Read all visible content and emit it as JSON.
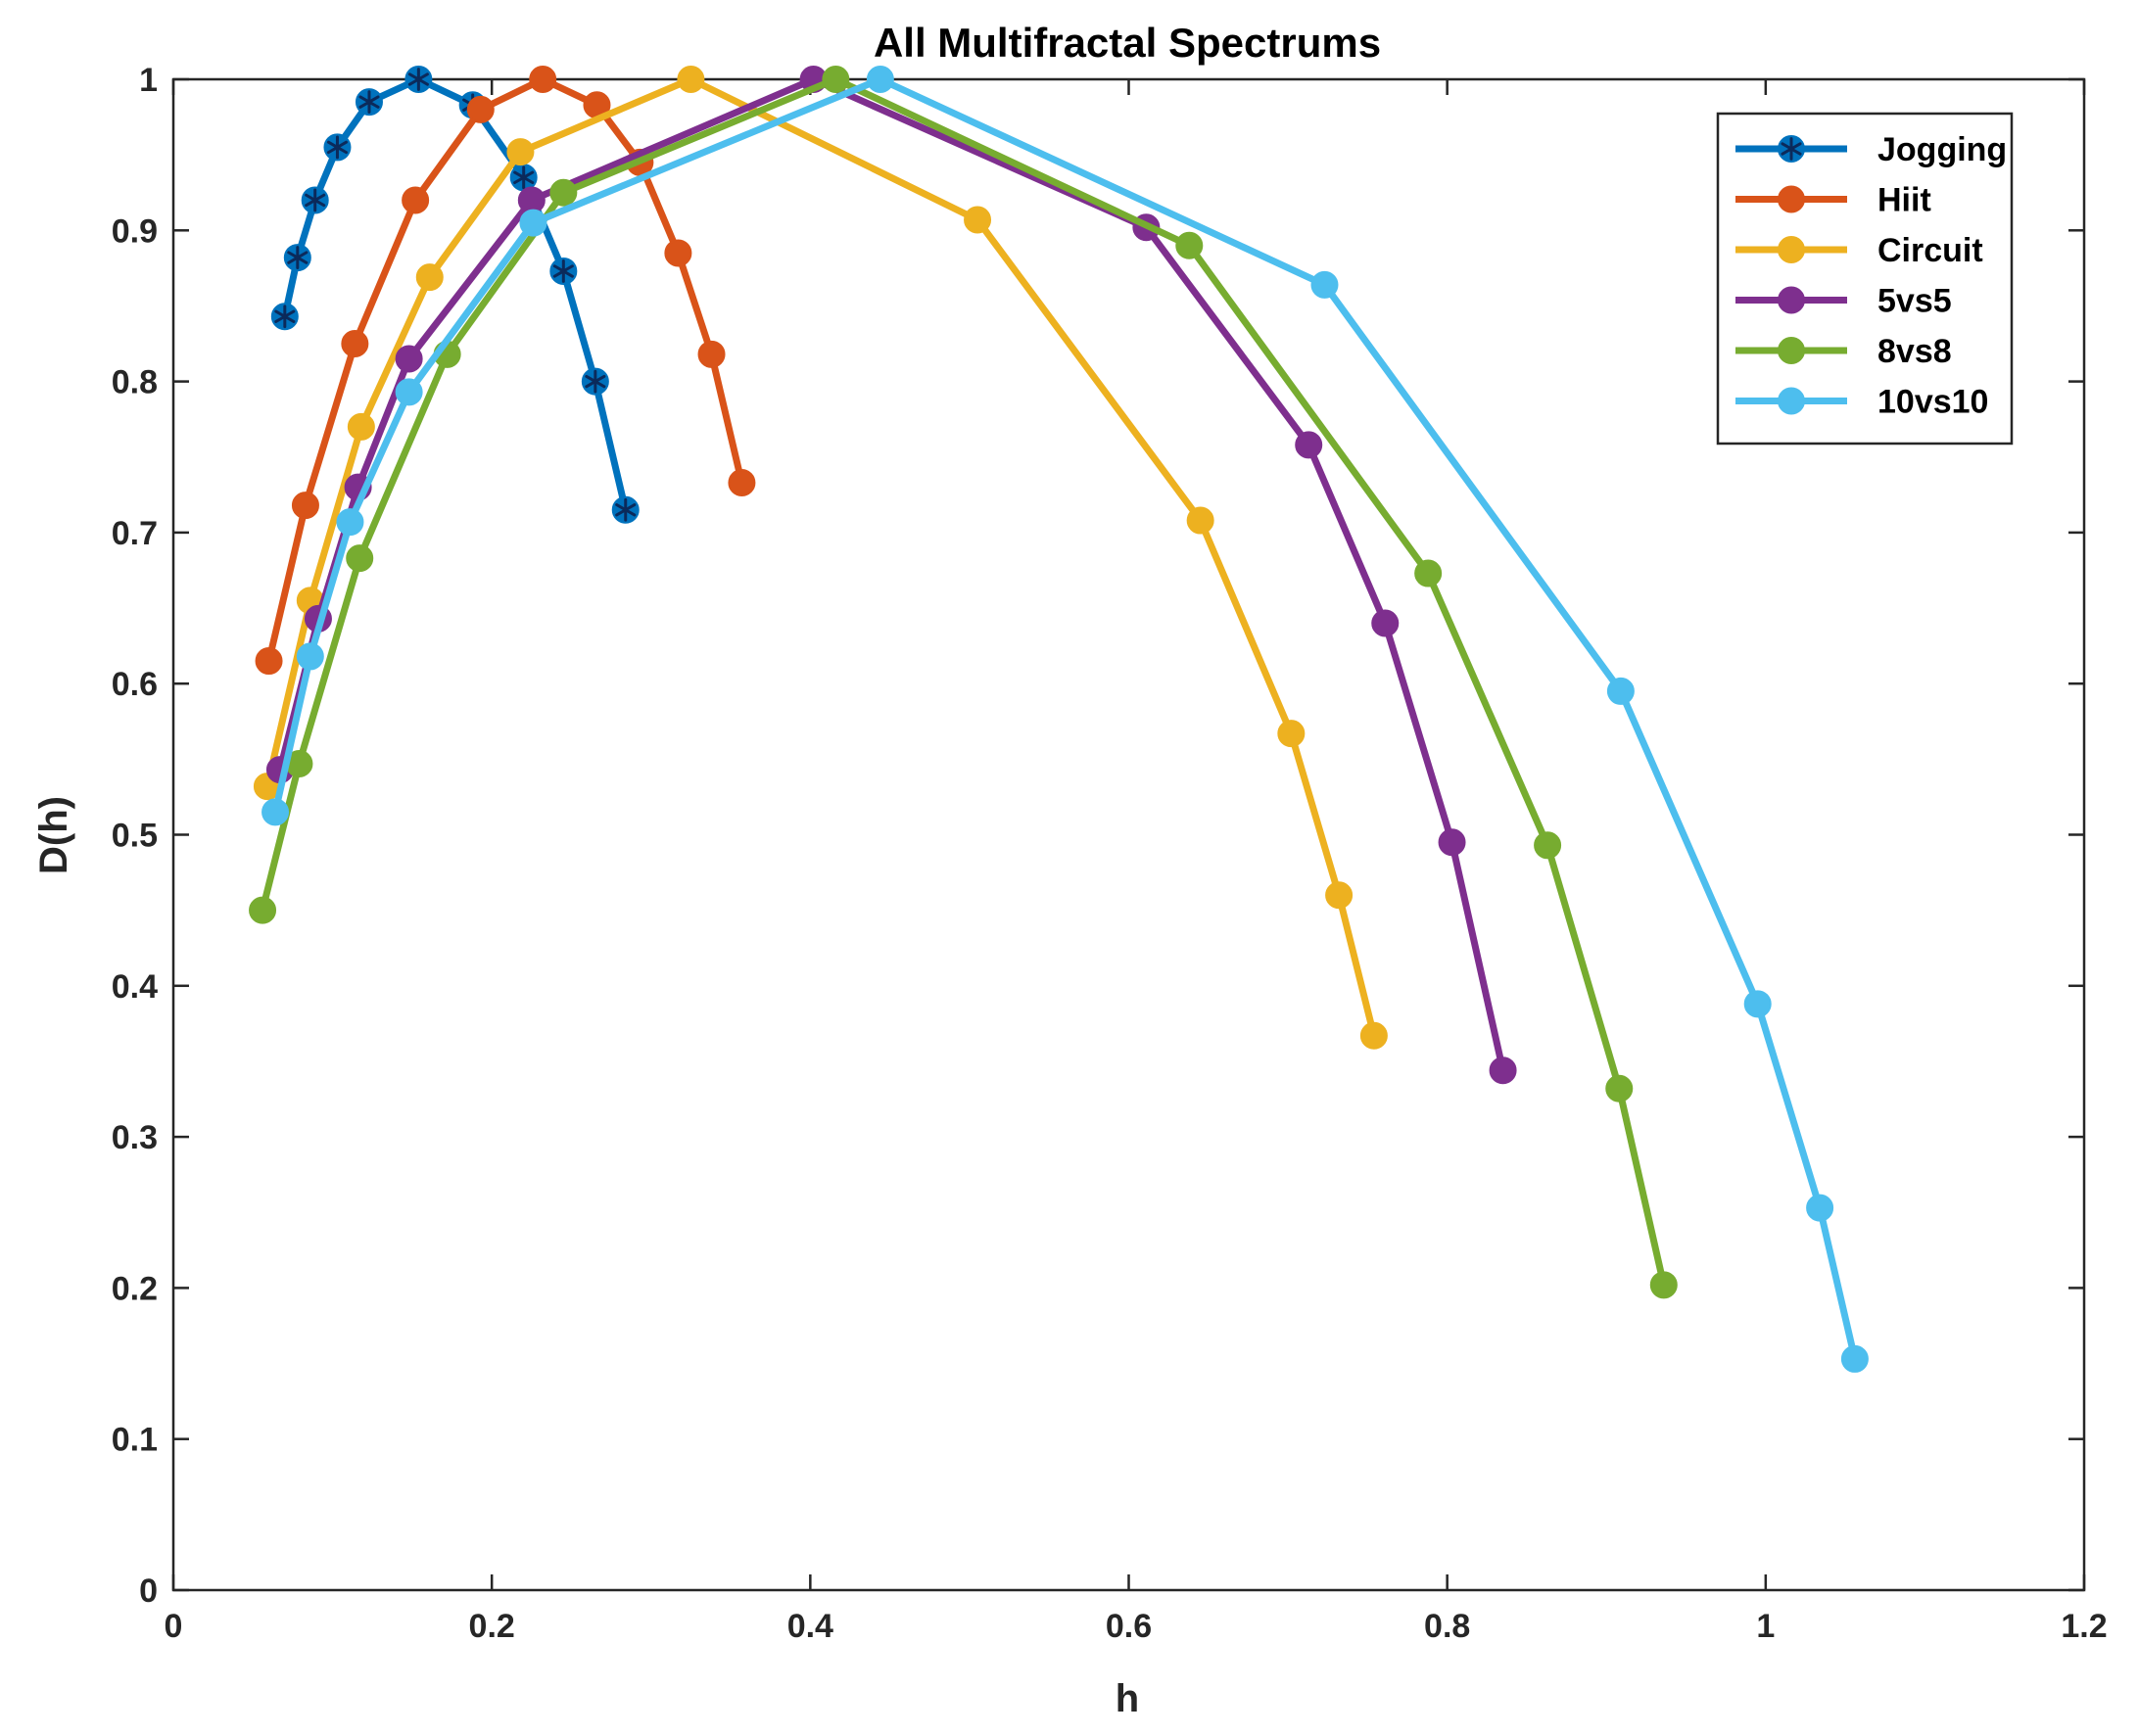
{
  "chart_data": {
    "type": "line",
    "title": "All Multifractal Spectrums",
    "xlabel": "h",
    "ylabel": "D(h)",
    "xlim": [
      0,
      1.2
    ],
    "ylim": [
      0,
      1
    ],
    "xticks": [
      "0",
      "0.2",
      "0.4",
      "0.6",
      "0.8",
      "1",
      "1.2"
    ],
    "yticks": [
      "0",
      "0.1",
      "0.2",
      "0.3",
      "0.4",
      "0.5",
      "0.6",
      "0.7",
      "0.8",
      "0.9",
      "1"
    ],
    "legend_position": "top-right",
    "series": [
      {
        "name": "Jogging",
        "color": "#0072BD",
        "marker": "asterisk-circle",
        "points": [
          [
            0.07,
            0.843
          ],
          [
            0.078,
            0.882
          ],
          [
            0.089,
            0.92
          ],
          [
            0.103,
            0.955
          ],
          [
            0.123,
            0.985
          ],
          [
            0.154,
            1.0
          ],
          [
            0.188,
            0.983
          ],
          [
            0.22,
            0.935
          ],
          [
            0.245,
            0.873
          ],
          [
            0.265,
            0.8
          ],
          [
            0.284,
            0.715
          ]
        ]
      },
      {
        "name": "Hiit",
        "color": "#D95319",
        "marker": "circle",
        "points": [
          [
            0.06,
            0.615
          ],
          [
            0.083,
            0.718
          ],
          [
            0.114,
            0.825
          ],
          [
            0.152,
            0.92
          ],
          [
            0.193,
            0.98
          ],
          [
            0.232,
            1.0
          ],
          [
            0.266,
            0.983
          ],
          [
            0.293,
            0.945
          ],
          [
            0.317,
            0.885
          ],
          [
            0.338,
            0.818
          ],
          [
            0.357,
            0.733
          ]
        ]
      },
      {
        "name": "Circuit",
        "color": "#EDB120",
        "marker": "circle",
        "points": [
          [
            0.059,
            0.532
          ],
          [
            0.086,
            0.655
          ],
          [
            0.118,
            0.77
          ],
          [
            0.161,
            0.869
          ],
          [
            0.218,
            0.952
          ],
          [
            0.325,
            1.0
          ],
          [
            0.505,
            0.907
          ],
          [
            0.645,
            0.708
          ],
          [
            0.702,
            0.567
          ],
          [
            0.732,
            0.46
          ],
          [
            0.754,
            0.367
          ]
        ]
      },
      {
        "name": "5vs5",
        "color": "#7E2F8E",
        "marker": "circle",
        "points": [
          [
            0.067,
            0.543
          ],
          [
            0.091,
            0.643
          ],
          [
            0.116,
            0.73
          ],
          [
            0.148,
            0.815
          ],
          [
            0.225,
            0.92
          ],
          [
            0.402,
            1.0
          ],
          [
            0.611,
            0.902
          ],
          [
            0.713,
            0.758
          ],
          [
            0.761,
            0.64
          ],
          [
            0.803,
            0.495
          ],
          [
            0.835,
            0.344
          ]
        ]
      },
      {
        "name": "8vs8",
        "color": "#77AC30",
        "marker": "circle",
        "points": [
          [
            0.056,
            0.45
          ],
          [
            0.079,
            0.547
          ],
          [
            0.117,
            0.683
          ],
          [
            0.172,
            0.818
          ],
          [
            0.245,
            0.925
          ],
          [
            0.416,
            1.0
          ],
          [
            0.638,
            0.89
          ],
          [
            0.788,
            0.673
          ],
          [
            0.863,
            0.493
          ],
          [
            0.908,
            0.332
          ],
          [
            0.936,
            0.202
          ]
        ]
      },
      {
        "name": "10vs10",
        "color": "#4DBEEE",
        "marker": "circle",
        "points": [
          [
            0.064,
            0.515
          ],
          [
            0.086,
            0.618
          ],
          [
            0.111,
            0.707
          ],
          [
            0.148,
            0.793
          ],
          [
            0.226,
            0.905
          ],
          [
            0.444,
            1.0
          ],
          [
            0.723,
            0.864
          ],
          [
            0.909,
            0.595
          ],
          [
            0.995,
            0.388
          ],
          [
            1.034,
            0.253
          ],
          [
            1.056,
            0.153
          ]
        ]
      }
    ]
  }
}
